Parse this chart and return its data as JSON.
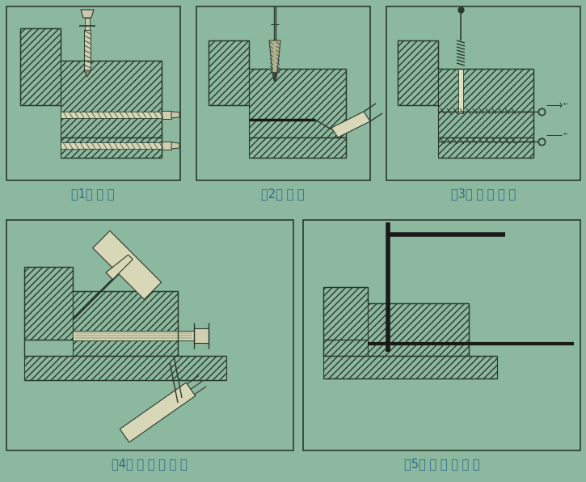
{
  "bg_color": "#8db8a0",
  "line_color": "#2a3a2a",
  "caption_color": "#2a6a8a",
  "captions": [
    "（1） 成 孔",
    "（2） 清 孔",
    "（3） 丙 酮 清 洗",
    "（4） 注 入 胶 粘 剂",
    "（5） 插 入 连 接 件"
  ],
  "fig_width": 7.25,
  "fig_height": 5.96,
  "dpi": 100
}
